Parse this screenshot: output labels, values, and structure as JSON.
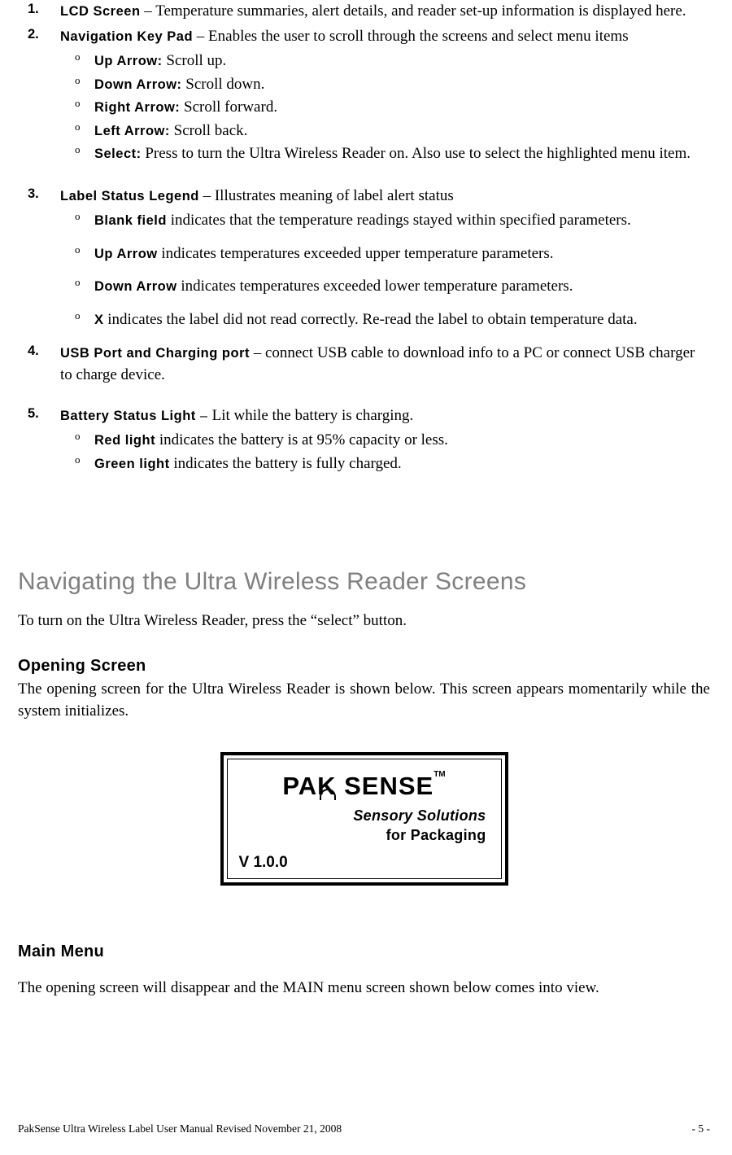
{
  "items": {
    "i1": {
      "num": "1.",
      "label": "LCD Screen",
      "text": " – Temperature summaries, alert details, and reader set-up information is displayed here."
    },
    "i2": {
      "num": "2.",
      "label": "Navigation Key Pad",
      "text": " – Enables the user to scroll through the screens and select menu items",
      "sub": {
        "a": {
          "b": "o",
          "label": "Up Arrow:",
          "text": "  Scroll up."
        },
        "b": {
          "b": "o",
          "label": "Down Arrow:",
          "text": "  Scroll down."
        },
        "c": {
          "b": "o",
          "label": "Right Arrow:",
          "text": "  Scroll forward."
        },
        "d": {
          "b": "o",
          "label": "Left Arrow:",
          "text": "  Scroll back."
        },
        "e": {
          "b": "o",
          "label": "Select:",
          "text": "  Press to turn the Ultra Wireless Reader on. Also use to select the highlighted menu item."
        }
      }
    },
    "i3": {
      "num": "3.",
      "label": "Label Status Legend",
      "text": " –  Illustrates meaning of label alert status",
      "sub": {
        "a": {
          "b": "o",
          "label": "Blank field",
          "text": " indicates that the temperature readings stayed within specified parameters."
        },
        "b": {
          "b": "o",
          "label": "Up Arrow",
          "text": " indicates temperatures exceeded upper temperature parameters."
        },
        "c": {
          "b": "o",
          "label": "Down Arrow",
          "text": " indicates temperatures exceeded lower temperature parameters."
        },
        "d": {
          "b": "o",
          "label": "X",
          "text": " indicates the label did not read correctly.  Re-read the label to obtain temperature data."
        }
      }
    },
    "i4": {
      "num": "4.",
      "label": "USB Port and Charging port",
      "text": " – connect USB cable to download info to a PC or connect USB charger to charge device."
    },
    "i5": {
      "num": "5.",
      "label": "Battery Status Light",
      "dash": " – ",
      "text": "Lit while the battery is charging.",
      "sub": {
        "a": {
          "b": "o",
          "label": "Red light",
          "text": " indicates the battery is at 95% capacity or less."
        },
        "b": {
          "b": "o",
          "label": "Green light",
          "text": " indicates the battery is fully charged."
        }
      }
    }
  },
  "heading1": "Navigating the Ultra Wireless Reader Screens",
  "intro": "To turn on the Ultra Wireless Reader, press the “select” button.",
  "sub1": {
    "title": "Opening Screen",
    "text": "The opening screen for the Ultra Wireless Reader is shown below.   This screen appears momentarily while the system initializes."
  },
  "lcd": {
    "brand": "PAK SENSE",
    "tm": "TM",
    "tag1": "Sensory Solutions",
    "tag2": "for Packaging",
    "version": "V 1.0.0"
  },
  "sub2": {
    "title": "Main Menu",
    "text": "The opening screen will disappear and the MAIN menu screen shown below comes into view."
  },
  "footer": {
    "left": "PakSense Ultra Wireless Label User Manual Revised November 21, 2008",
    "right": "- 5 -"
  }
}
